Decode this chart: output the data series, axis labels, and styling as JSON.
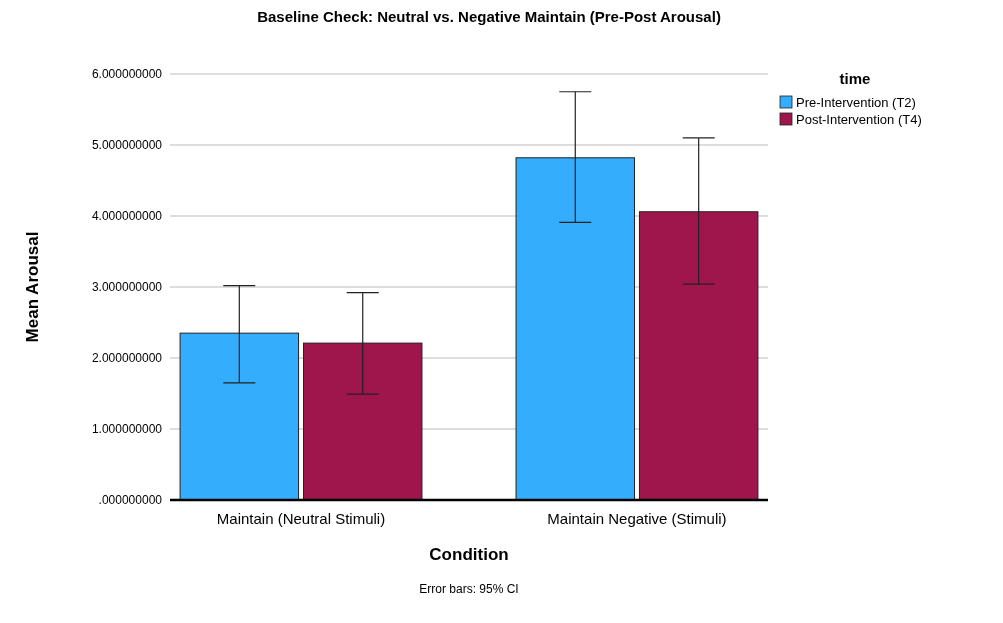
{
  "chart_data": {
    "type": "bar",
    "title": "Baseline Check: Neutral vs. Negative Maintain (Pre-Post Arousal)",
    "xlabel": "Condition",
    "ylabel": "Mean Arousal",
    "legend_title": "time",
    "categories": [
      "Maintain (Neutral Stimuli)",
      "Maintain Negative (Stimuli)"
    ],
    "series": [
      {
        "name": "Pre-Intervention (T2)",
        "color": "#33adfc",
        "values": [
          2.35,
          4.82
        ],
        "errors": [
          [
            1.65,
            3.02
          ],
          [
            3.91,
            5.75
          ]
        ]
      },
      {
        "name": "Post-Intervention (T4)",
        "color": "#9e164b",
        "values": [
          2.21,
          4.06
        ],
        "errors": [
          [
            1.49,
            2.92
          ],
          [
            3.04,
            5.1
          ]
        ]
      }
    ],
    "ylim": [
      0,
      6
    ],
    "yticks": [
      {
        "value": 0,
        "label": ".000000000"
      },
      {
        "value": 1,
        "label": "1.000000000"
      },
      {
        "value": 2,
        "label": "2.000000000"
      },
      {
        "value": 3,
        "label": "3.000000000"
      },
      {
        "value": 4,
        "label": "4.000000000"
      },
      {
        "value": 5,
        "label": "5.000000000"
      },
      {
        "value": 6,
        "label": "6.000000000"
      }
    ],
    "grid": "y",
    "legend": "top right",
    "annotations": [
      "Error bars: 95% CI"
    ]
  }
}
